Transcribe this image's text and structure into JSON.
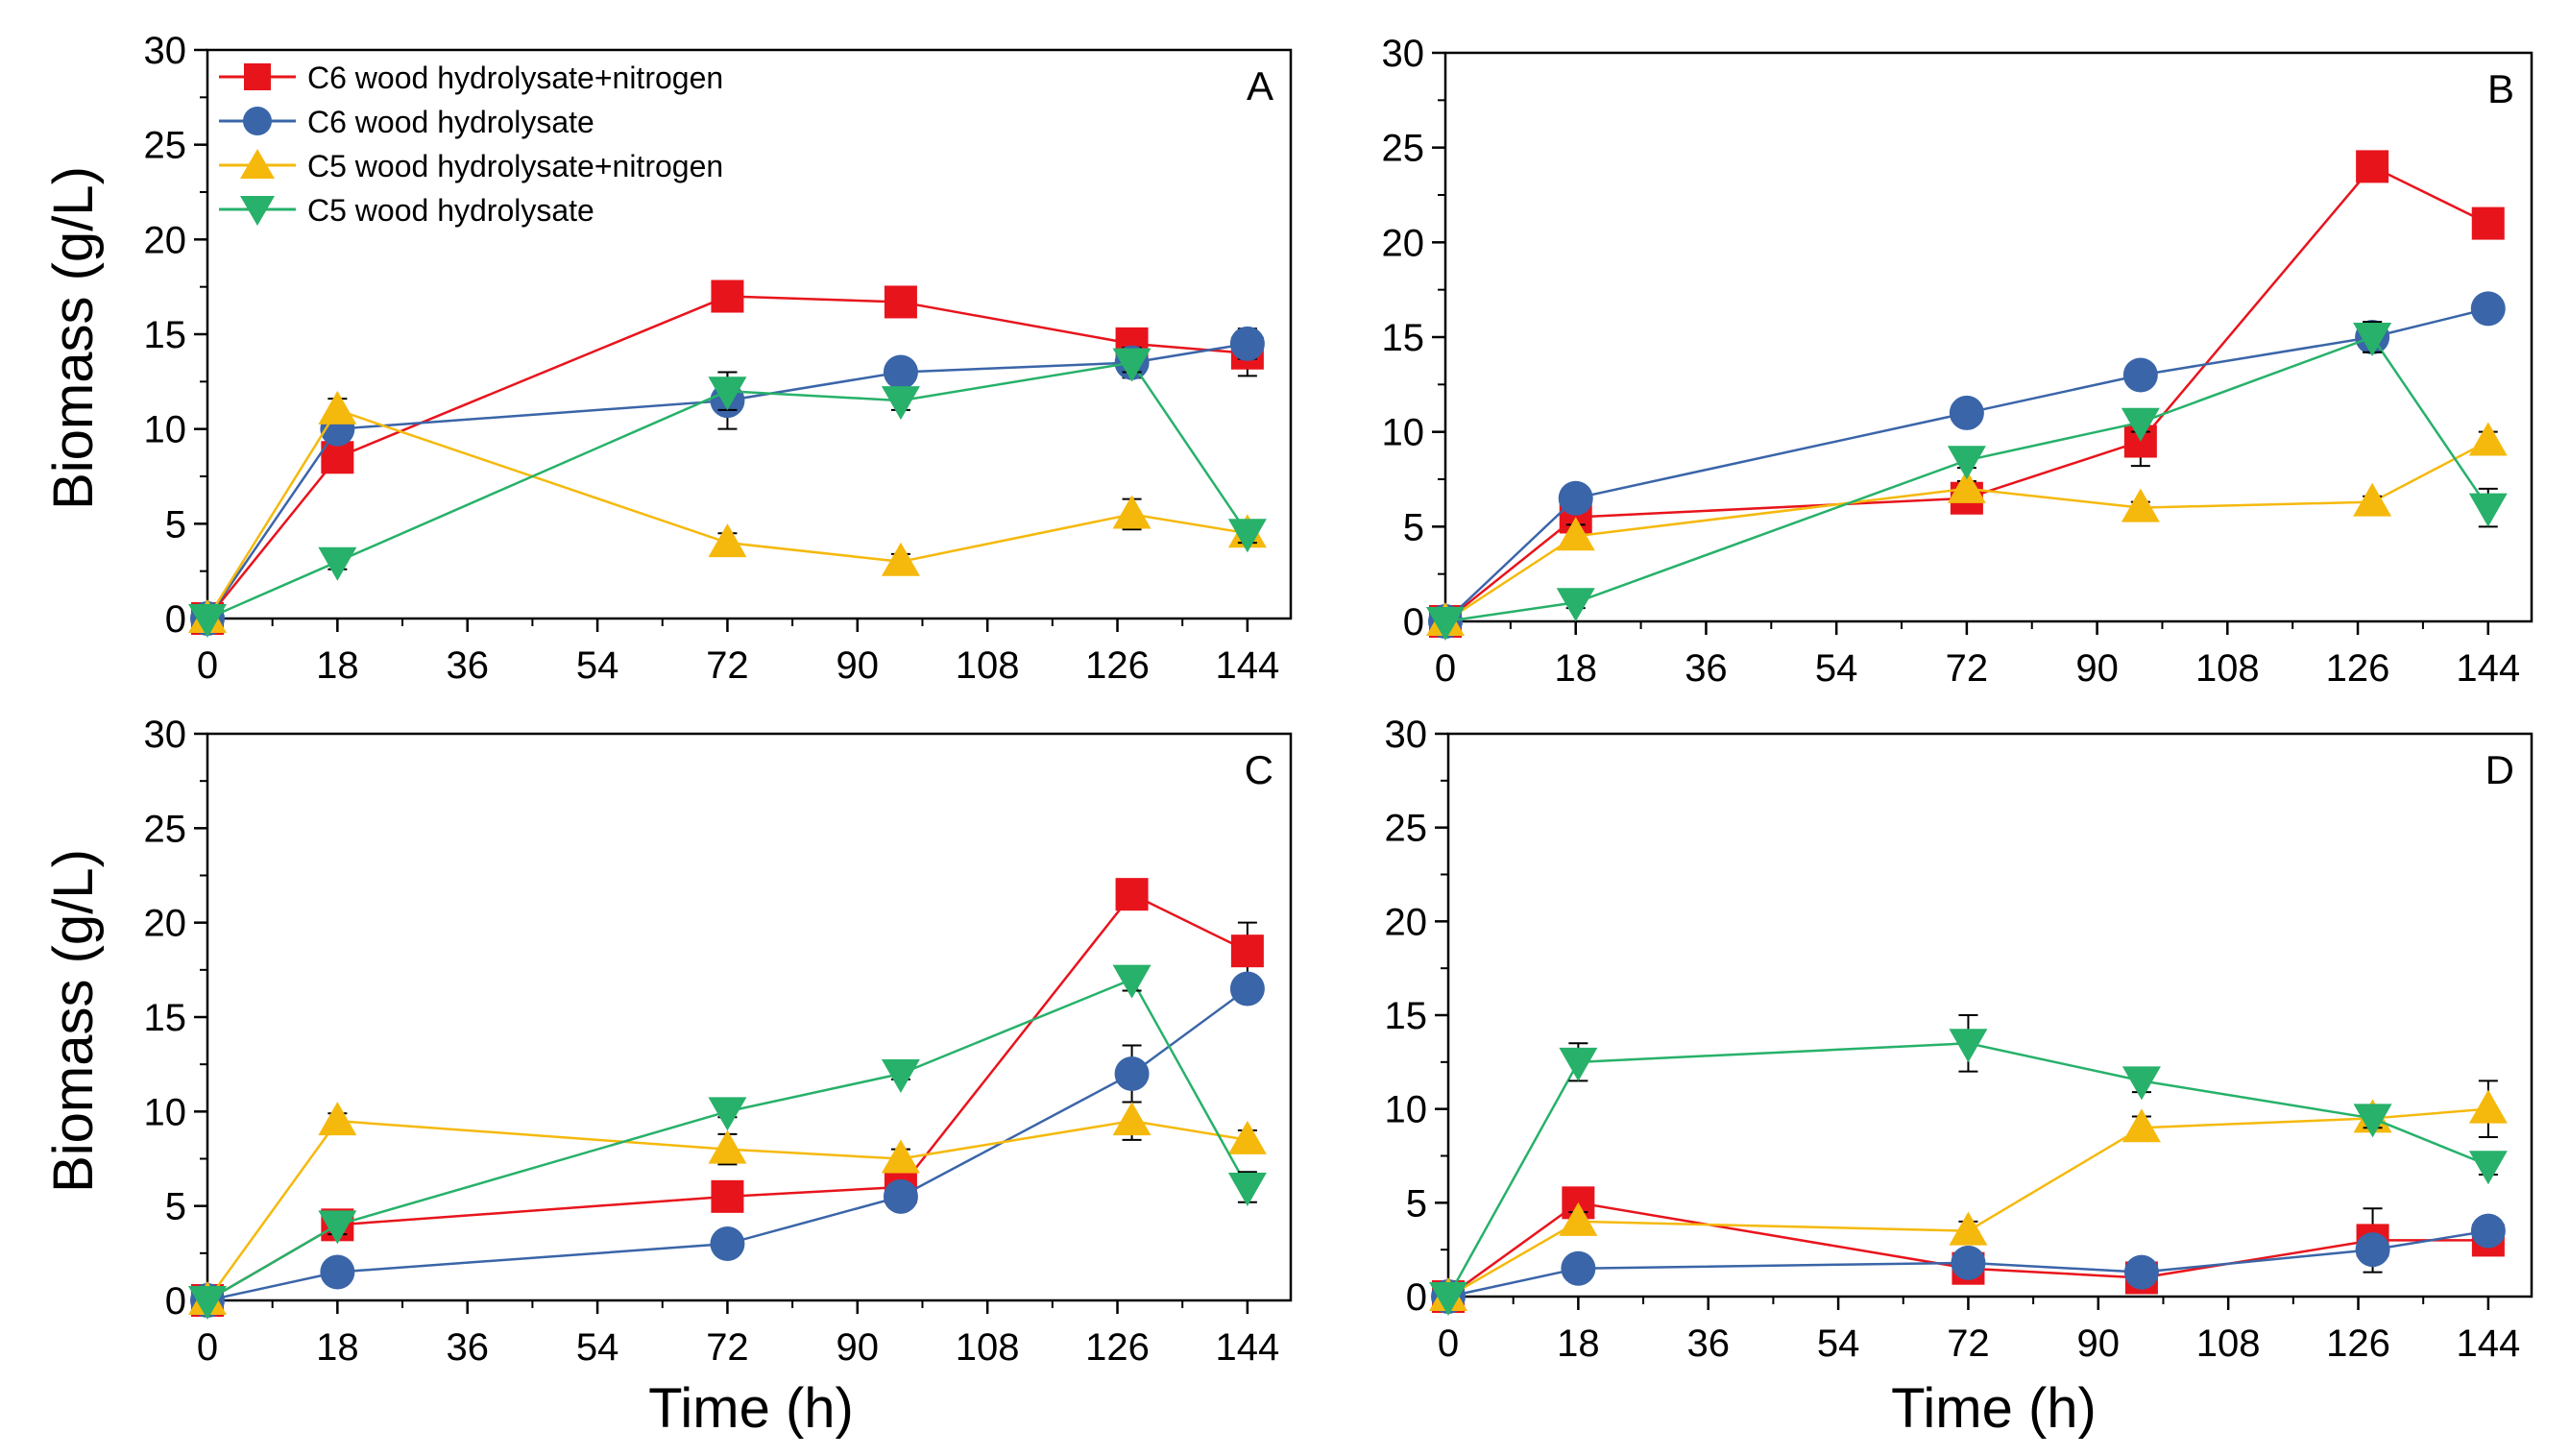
{
  "figure": {
    "ylabel": "Biomass (g/L)",
    "xlabel": "Time (h)"
  },
  "series_styles": [
    {
      "id": "c6n",
      "color": "#e8141c",
      "marker": "square"
    },
    {
      "id": "c6",
      "color": "#3a65a8",
      "marker": "circle"
    },
    {
      "id": "c5n",
      "color": "#f5b90d",
      "marker": "triangle-up"
    },
    {
      "id": "c5",
      "color": "#27b16a",
      "marker": "triangle-down"
    }
  ],
  "legend": [
    "C6 wood hydrolysate+nitrogen",
    "C6 wood hydrolysate",
    "C5 wood hydrolysate+nitrogen",
    "C5 wood hydrolysate"
  ],
  "chart_data": [
    {
      "type": "line",
      "panel": "A",
      "xlabel": "",
      "ylabel": "Biomass (g/L)",
      "xlim": [
        0,
        150
      ],
      "ylim": [
        0,
        30
      ],
      "xticks": [
        0,
        18,
        36,
        54,
        72,
        90,
        108,
        126,
        144
      ],
      "yticks": [
        0,
        5,
        10,
        15,
        20,
        25,
        30
      ],
      "x": [
        0,
        18,
        72,
        96,
        128,
        144
      ],
      "series": [
        {
          "name": "C6 wood hydrolysate+nitrogen",
          "values": [
            0,
            8.5,
            17,
            16.7,
            14.5,
            14
          ],
          "err": [
            0,
            0.8,
            0.3,
            0.3,
            0.4,
            1.2
          ]
        },
        {
          "name": "C6 wood hydrolysate",
          "values": [
            0,
            10,
            11.5,
            13,
            13.5,
            14.5
          ],
          "err": [
            0,
            0.6,
            1.5,
            0.5,
            0.8,
            0.8
          ]
        },
        {
          "name": "C5 wood hydrolysate+nitrogen",
          "values": [
            0,
            11,
            4,
            3,
            5.5,
            4.5
          ],
          "err": [
            0,
            0.6,
            0.5,
            0.4,
            0.8,
            0.5
          ]
        },
        {
          "name": "C5 wood hydrolysate",
          "values": [
            0,
            3,
            12,
            11.5,
            13.5,
            4.5
          ],
          "err": [
            0,
            0.4,
            1.0,
            0.5,
            0.5,
            0.5
          ]
        }
      ]
    },
    {
      "type": "line",
      "panel": "B",
      "xlabel": "",
      "ylabel": "",
      "xlim": [
        0,
        150
      ],
      "ylim": [
        0,
        30
      ],
      "xticks": [
        0,
        18,
        36,
        54,
        72,
        90,
        108,
        126,
        144
      ],
      "yticks": [
        0,
        5,
        10,
        15,
        20,
        25,
        30
      ],
      "x": [
        0,
        18,
        72,
        96,
        128,
        144
      ],
      "series": [
        {
          "name": "C6 wood hydrolysate+nitrogen",
          "values": [
            0,
            5.5,
            6.5,
            9.5,
            24,
            21
          ],
          "err": [
            0,
            0.3,
            0.3,
            1.3,
            0.3,
            0.3
          ]
        },
        {
          "name": "C6 wood hydrolysate",
          "values": [
            0,
            6.5,
            11,
            13,
            15,
            16.5
          ],
          "err": [
            0,
            0.3,
            0.3,
            0.6,
            0.8,
            0.3
          ]
        },
        {
          "name": "C5 wood hydrolysate+nitrogen",
          "values": [
            0,
            4.5,
            7,
            6,
            6.3,
            9.5
          ],
          "err": [
            0,
            0.6,
            0.4,
            0.3,
            0.3,
            0.5
          ]
        },
        {
          "name": "C5 wood hydrolysate",
          "values": [
            0,
            1,
            8.5,
            10.5,
            15,
            6
          ],
          "err": [
            0,
            0.3,
            0.4,
            0.5,
            0.8,
            1.0
          ]
        }
      ]
    },
    {
      "type": "line",
      "panel": "C",
      "xlabel": "Time (h)",
      "ylabel": "Biomass (g/L)",
      "xlim": [
        0,
        150
      ],
      "ylim": [
        0,
        30
      ],
      "xticks": [
        0,
        18,
        36,
        54,
        72,
        90,
        108,
        126,
        144
      ],
      "yticks": [
        0,
        5,
        10,
        15,
        20,
        25,
        30
      ],
      "x": [
        0,
        18,
        72,
        96,
        128,
        144
      ],
      "series": [
        {
          "name": "C6 wood hydrolysate+nitrogen",
          "values": [
            0,
            4,
            5.5,
            6,
            21.5,
            18.5
          ],
          "err": [
            0,
            0.3,
            0.3,
            0.3,
            0.3,
            1.5
          ]
        },
        {
          "name": "C6 wood hydrolysate",
          "values": [
            0,
            1.5,
            3,
            5.5,
            12,
            16.5
          ],
          "err": [
            0,
            0.3,
            0.3,
            0.3,
            1.5,
            0.5
          ]
        },
        {
          "name": "C5 wood hydrolysate+nitrogen",
          "values": [
            0,
            9.5,
            8,
            7.5,
            9.5,
            8.5
          ],
          "err": [
            0,
            0.4,
            0.8,
            0.5,
            1.0,
            0.5
          ]
        },
        {
          "name": "C5 wood hydrolysate",
          "values": [
            0,
            4,
            10,
            12,
            17,
            6
          ],
          "err": [
            0,
            0.5,
            0.3,
            0.3,
            0.6,
            0.8
          ]
        }
      ]
    },
    {
      "type": "line",
      "panel": "D",
      "xlabel": "Time (h)",
      "ylabel": "",
      "xlim": [
        0,
        150
      ],
      "ylim": [
        0,
        30
      ],
      "xticks": [
        0,
        18,
        36,
        54,
        72,
        90,
        108,
        126,
        144
      ],
      "yticks": [
        0,
        5,
        10,
        15,
        20,
        25,
        30
      ],
      "x": [
        0,
        18,
        72,
        96,
        128,
        144
      ],
      "series": [
        {
          "name": "C6 wood hydrolysate+nitrogen",
          "values": [
            0,
            5,
            1.5,
            1,
            3,
            3
          ],
          "err": [
            0,
            0.3,
            0.3,
            0.3,
            1.7,
            0.3
          ]
        },
        {
          "name": "C6 wood hydrolysate",
          "values": [
            0,
            1.5,
            1.8,
            1.3,
            2.5,
            3.5
          ],
          "err": [
            0,
            0.3,
            0.3,
            0.3,
            0.3,
            0.3
          ]
        },
        {
          "name": "C5 wood hydrolysate+nitrogen",
          "values": [
            0,
            4,
            3.5,
            9,
            9.5,
            10
          ],
          "err": [
            0,
            0.5,
            0.5,
            0.6,
            0.5,
            1.5
          ]
        },
        {
          "name": "C5 wood hydrolysate",
          "values": [
            0,
            12.5,
            13.5,
            11.5,
            9.5,
            7
          ],
          "err": [
            0,
            1.0,
            1.5,
            0.6,
            0.5,
            0.5
          ]
        }
      ]
    }
  ]
}
